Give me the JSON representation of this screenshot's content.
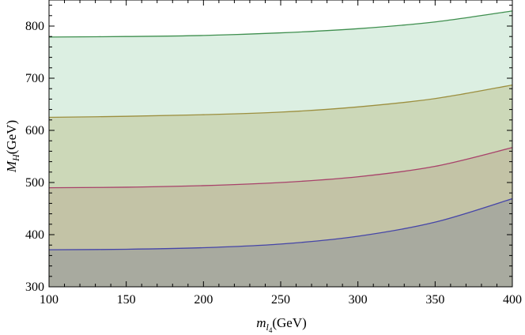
{
  "chart_data": {
    "type": "area",
    "title": "",
    "xlabel_main": "m",
    "xlabel_sub": "l",
    "xlabel_subsub": "4",
    "xlabel_unit": "(GeV)",
    "ylabel_main": "M",
    "ylabel_sub": "H",
    "ylabel_unit": "(GeV)",
    "xlim": [
      100,
      400
    ],
    "ylim": [
      300,
      850
    ],
    "x_ticks": [
      100,
      150,
      200,
      250,
      300,
      350,
      400
    ],
    "y_ticks": [
      300,
      400,
      500,
      600,
      700,
      800
    ],
    "x_tick_labels": [
      "100",
      "150",
      "200",
      "250",
      "300",
      "350",
      "400"
    ],
    "y_tick_labels": [
      "300",
      "400",
      "500",
      "600",
      "700",
      "800"
    ],
    "grid": false,
    "legend": "none",
    "x": [
      100,
      150,
      200,
      250,
      300,
      350,
      400
    ],
    "series": [
      {
        "values": [
          779,
          780,
          782,
          787,
          795,
          808,
          829
        ],
        "line_color": "#3f8f4f",
        "fill_color": "#dcefe2"
      },
      {
        "values": [
          625,
          627,
          630,
          635,
          645,
          661,
          687
        ],
        "line_color": "#9c8f3f",
        "fill_color": "#ccd8b8"
      },
      {
        "values": [
          490,
          491,
          494,
          500,
          511,
          531,
          567
        ],
        "line_color": "#a8426a",
        "fill_color": "#c3c3a6"
      },
      {
        "values": [
          371,
          372,
          375,
          382,
          397,
          424,
          469
        ],
        "line_color": "#4545a8",
        "fill_color": "#a8aa9f"
      }
    ]
  }
}
